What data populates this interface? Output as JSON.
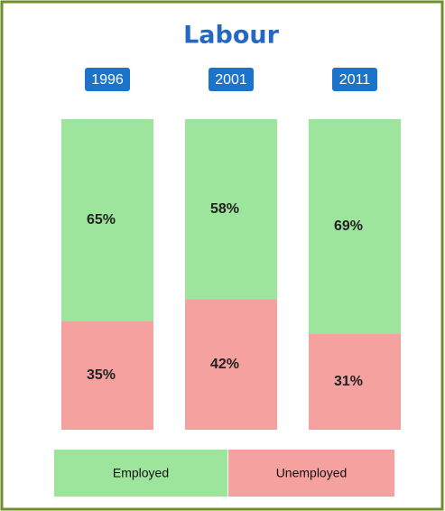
{
  "chart_data": {
    "type": "bar",
    "stacked": true,
    "title": "Labour",
    "categories": [
      "1996",
      "2001",
      "2011"
    ],
    "series": [
      {
        "name": "Employed",
        "color": "#9de59c",
        "values": [
          65,
          58,
          69
        ],
        "value_labels": [
          "65%",
          "58%",
          "69%"
        ]
      },
      {
        "name": "Unemployed",
        "color": "#f5a19f",
        "values": [
          35,
          42,
          31
        ],
        "value_labels": [
          "35%",
          "42%",
          "31%"
        ]
      }
    ],
    "ylim": [
      0,
      100
    ],
    "legend": "bottom"
  }
}
